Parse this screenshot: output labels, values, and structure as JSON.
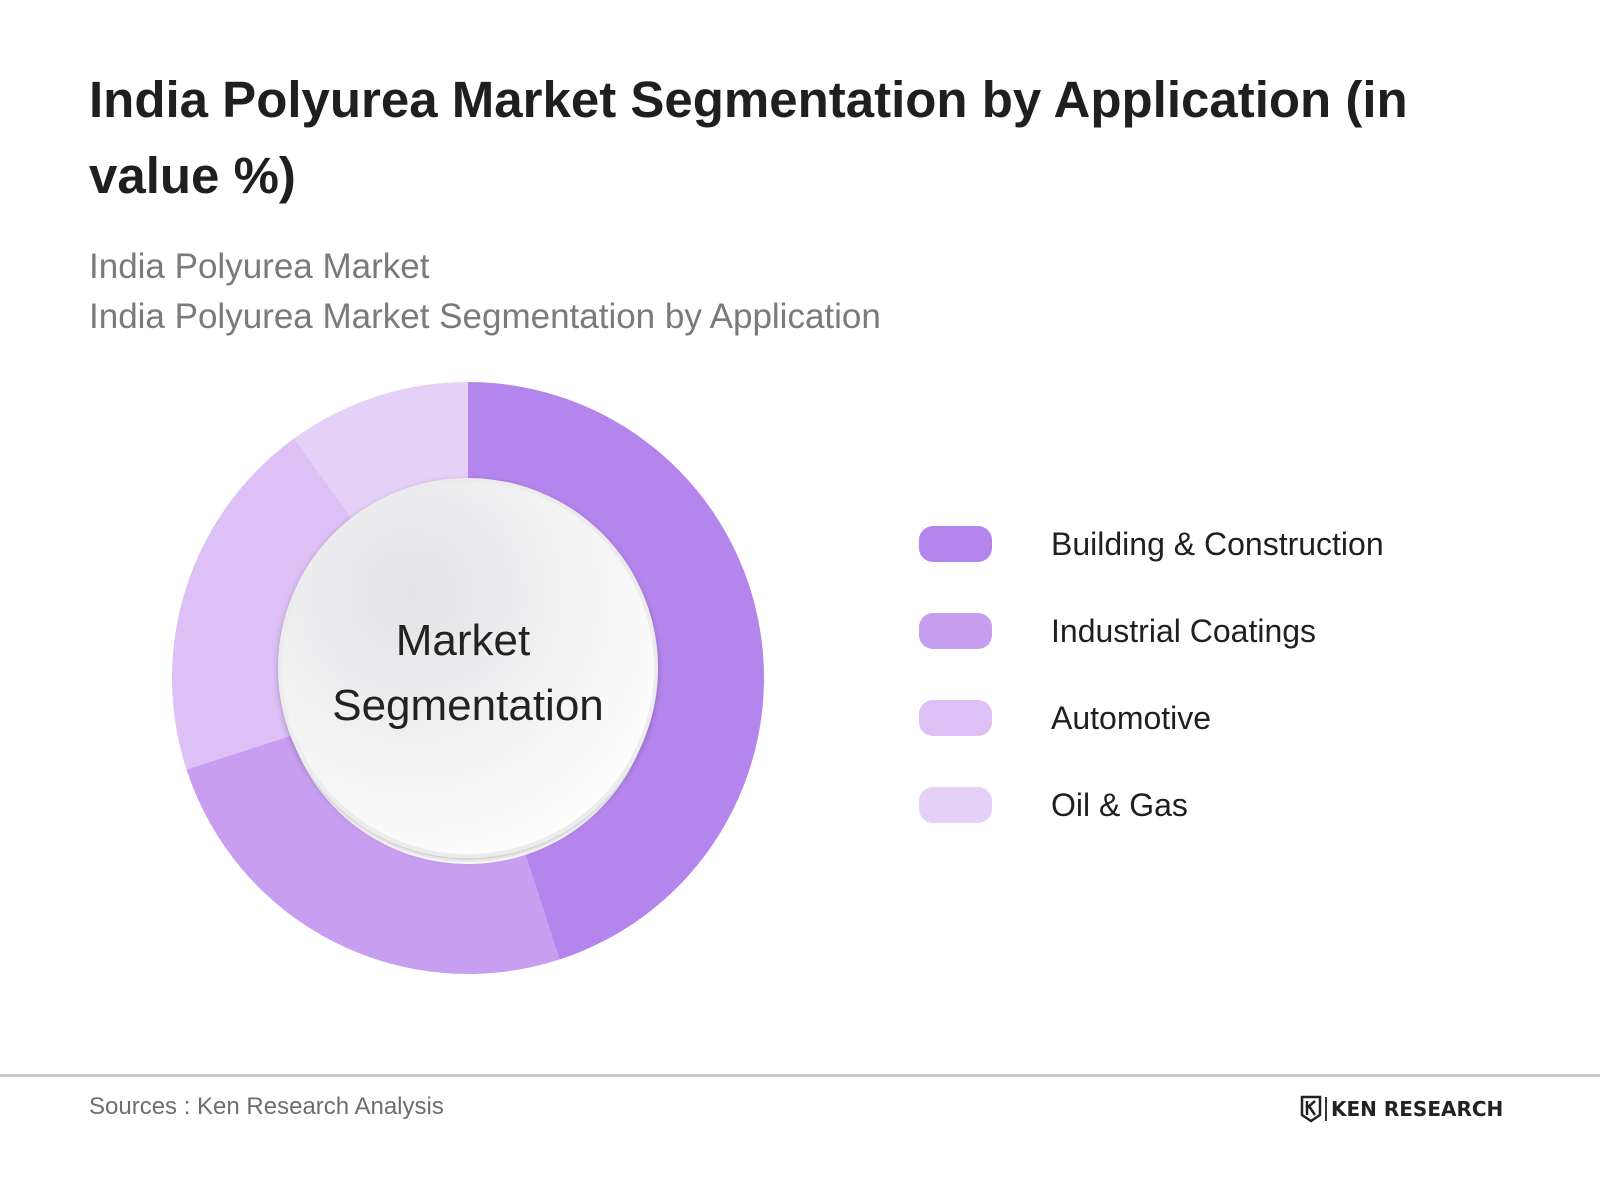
{
  "title": "India Polyurea Market Segmentation by Application (in value %)",
  "subtitle_line1": "India Polyurea Market",
  "subtitle_line2": "India Polyurea Market Segmentation by Application",
  "center_label_line1": "Market",
  "center_label_line2": "Segmentation",
  "source": "Sources : Ken Research Analysis",
  "logo_text": "KEN RESEARCH",
  "chart_data": {
    "type": "pie",
    "title": "India Polyurea Market Segmentation by Application (in value %)",
    "categories": [
      "Building & Construction",
      "Industrial Coatings",
      "Automotive",
      "Oil & Gas"
    ],
    "values": [
      45,
      25,
      20,
      10
    ],
    "colors": [
      "#b485ec",
      "#c89ef0",
      "#dcc0f6",
      "#e5d0f8"
    ],
    "legend_placement": "right"
  }
}
